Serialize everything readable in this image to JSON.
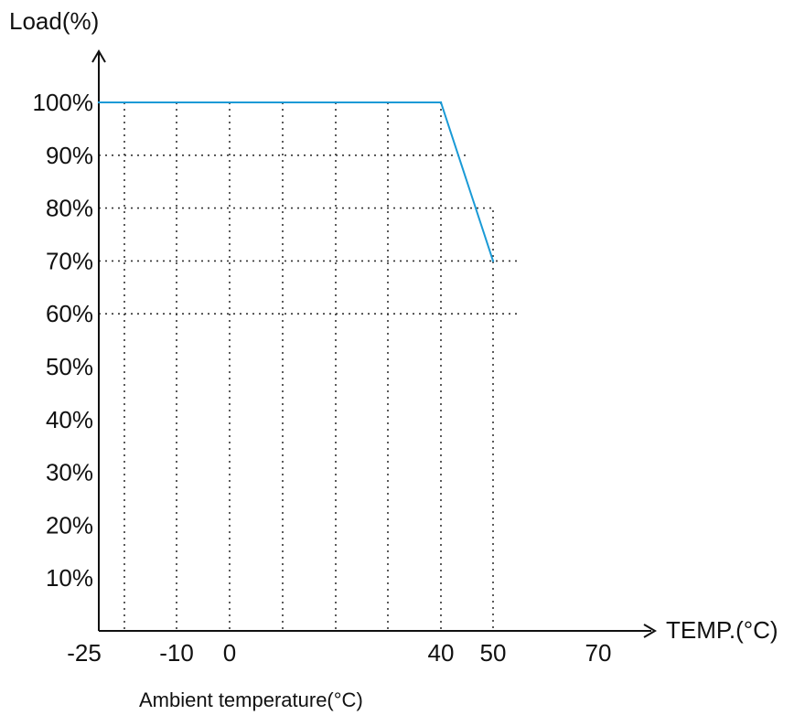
{
  "colors": {
    "curve": "#1a9ad6",
    "axis": "#111111",
    "grid": "#333333",
    "background": "#ffffff"
  },
  "chart_data": {
    "type": "line",
    "title": "",
    "ylabel": "Load(%)",
    "xlabel": "TEMP.(°C)",
    "caption": "Ambient temperature(°C)",
    "grid": "dotted",
    "ylim": [
      0,
      100
    ],
    "xlim": [
      -25,
      70
    ],
    "y_ticks": [
      {
        "value": 100,
        "label": "100%"
      },
      {
        "value": 90,
        "label": "90%"
      },
      {
        "value": 80,
        "label": "80%"
      },
      {
        "value": 70,
        "label": "70%"
      },
      {
        "value": 60,
        "label": "60%"
      },
      {
        "value": 50,
        "label": "50%"
      },
      {
        "value": 40,
        "label": "40%"
      },
      {
        "value": 30,
        "label": "30%"
      },
      {
        "value": 20,
        "label": "20%"
      },
      {
        "value": 10,
        "label": "10%"
      }
    ],
    "x_ticks": [
      {
        "value": -25,
        "label": "-25"
      },
      {
        "value": -10,
        "label": "-10"
      },
      {
        "value": 0,
        "label": "0"
      },
      {
        "value": 40,
        "label": "40"
      },
      {
        "value": 50,
        "label": "50"
      },
      {
        "value": 70,
        "label": "70"
      }
    ],
    "series": [
      {
        "x": [
          -25,
          40,
          50
        ],
        "y": [
          100,
          100,
          70
        ]
      }
    ]
  }
}
